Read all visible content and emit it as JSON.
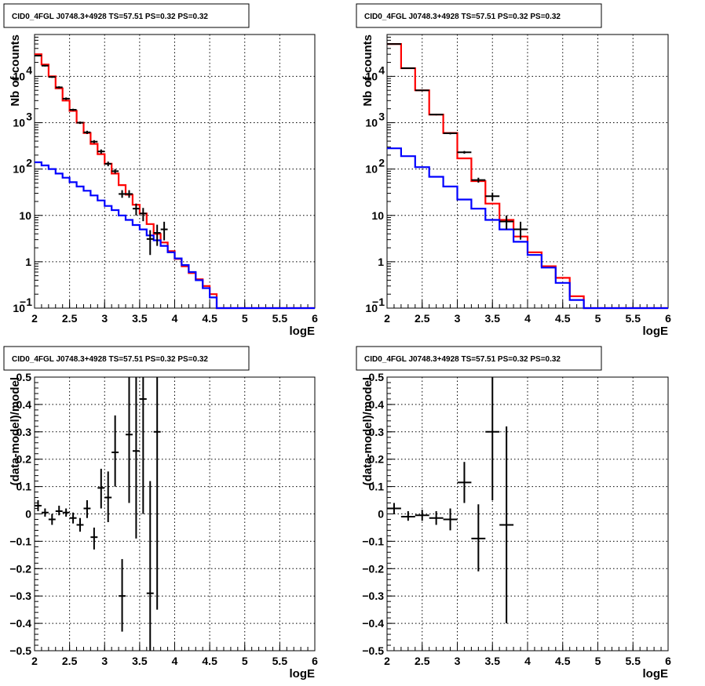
{
  "chart_data": [
    {
      "type": "step",
      "title": "CID0_4FGL J0748.3+4928 TS=57.51 PS=0.32 PS=0.32",
      "xlabel": "logE",
      "ylabel": "Nb of counts",
      "xlim": [
        2,
        6
      ],
      "ylim": [
        0.1,
        80000
      ],
      "yscale": "log",
      "grid": true,
      "x_ticks": [
        "2",
        "2.5",
        "3",
        "3.5",
        "4",
        "4.5",
        "5",
        "5.5",
        "6"
      ],
      "y_ticks": [
        {
          "value": 0.1,
          "label": "10",
          "sup": "−1"
        },
        {
          "value": 1,
          "label": "1",
          "sup": ""
        },
        {
          "value": 10,
          "label": "10",
          "sup": ""
        },
        {
          "value": 100,
          "label": "10",
          "sup": "2"
        },
        {
          "value": 1000,
          "label": "10",
          "sup": "3"
        },
        {
          "value": 10000,
          "label": "10",
          "sup": "4"
        }
      ],
      "bin_edges": [
        2.0,
        2.1,
        2.2,
        2.3,
        2.4,
        2.5,
        2.6,
        2.7,
        2.8,
        2.9,
        3.0,
        3.1,
        3.2,
        3.3,
        3.4,
        3.5,
        3.6,
        3.7,
        3.8,
        3.9,
        4.0,
        4.1,
        4.2,
        4.3,
        4.4,
        4.5,
        4.6,
        4.7,
        4.8,
        4.9,
        5.0,
        5.1,
        5.2,
        5.3,
        5.4,
        5.5,
        5.6,
        5.7,
        5.8,
        5.9,
        6.0
      ],
      "series": [
        {
          "color": "#ff0000",
          "values": [
            30000,
            18000,
            10000,
            5500,
            3000,
            1800,
            1000,
            600,
            350,
            210,
            130,
            80,
            45,
            28,
            17,
            11,
            6.5,
            4.0,
            2.6,
            1.7,
            1.15,
            0.8,
            0.57,
            0.42,
            0.3,
            0.2,
            0.1,
            0.1,
            0.1,
            0.1,
            0.1,
            0.1,
            0.1,
            0.1,
            0.1,
            0.1,
            0.1,
            0.1,
            0.1,
            0.1
          ]
        },
        {
          "color": "#0000ff",
          "values": [
            140,
            120,
            100,
            80,
            65,
            52,
            42,
            34,
            27,
            21,
            16,
            13,
            10,
            8.0,
            6.2,
            5.0,
            3.7,
            2.9,
            2.2,
            1.6,
            1.18,
            0.85,
            0.6,
            0.4,
            0.27,
            0.17,
            0.1,
            0.1,
            0.1,
            0.1,
            0.1,
            0.1,
            0.1,
            0.1,
            0.1,
            0.1,
            0.1,
            0.1,
            0.1,
            0.1
          ]
        }
      ],
      "points": [
        {
          "x": 2.05,
          "y": 28000,
          "xerr": 0.05,
          "ylo": 27000,
          "yhi": 29000
        },
        {
          "x": 2.15,
          "y": 17000,
          "xerr": 0.05,
          "ylo": 16300,
          "yhi": 17700
        },
        {
          "x": 2.25,
          "y": 9700,
          "xerr": 0.05,
          "ylo": 9300,
          "yhi": 10100
        },
        {
          "x": 2.35,
          "y": 5800,
          "xerr": 0.05,
          "ylo": 5500,
          "yhi": 6100
        },
        {
          "x": 2.45,
          "y": 3300,
          "xerr": 0.05,
          "ylo": 3100,
          "yhi": 3500
        },
        {
          "x": 2.55,
          "y": 1900,
          "xerr": 0.05,
          "ylo": 1800,
          "yhi": 2000
        },
        {
          "x": 2.65,
          "y": 1000,
          "xerr": 0.05,
          "ylo": 940,
          "yhi": 1060
        },
        {
          "x": 2.75,
          "y": 620,
          "xerr": 0.05,
          "ylo": 570,
          "yhi": 670
        },
        {
          "x": 2.85,
          "y": 390,
          "xerr": 0.05,
          "ylo": 360,
          "yhi": 420
        },
        {
          "x": 2.95,
          "y": 240,
          "xerr": 0.05,
          "ylo": 215,
          "yhi": 265
        },
        {
          "x": 3.05,
          "y": 130,
          "xerr": 0.05,
          "ylo": 115,
          "yhi": 145
        },
        {
          "x": 3.15,
          "y": 90,
          "xerr": 0.05,
          "ylo": 80,
          "yhi": 100
        },
        {
          "x": 3.25,
          "y": 29,
          "xerr": 0.05,
          "ylo": 24,
          "yhi": 35
        },
        {
          "x": 3.35,
          "y": 29,
          "xerr": 0.05,
          "ylo": 24,
          "yhi": 35
        },
        {
          "x": 3.45,
          "y": 14,
          "xerr": 0.05,
          "ylo": 10,
          "yhi": 18
        },
        {
          "x": 3.55,
          "y": 11,
          "xerr": 0.05,
          "ylo": 7.5,
          "yhi": 14.5
        },
        {
          "x": 3.65,
          "y": 3.1,
          "xerr": 0.05,
          "ylo": 1.4,
          "yhi": 4.8
        },
        {
          "x": 3.75,
          "y": 4.2,
          "xerr": 0.05,
          "ylo": 2.2,
          "yhi": 6.3
        },
        {
          "x": 3.85,
          "y": 5.0,
          "xerr": 0.05,
          "ylo": 2.9,
          "yhi": 7.3
        }
      ]
    },
    {
      "type": "step",
      "title": "CID0_4FGL J0748.3+4928 TS=57.51 PS=0.32 PS=0.32",
      "xlabel": "logE",
      "ylabel": "Nb of counts",
      "xlim": [
        2,
        6
      ],
      "ylim": [
        0.1,
        80000
      ],
      "yscale": "log",
      "grid": true,
      "x_ticks": [
        "2",
        "2.5",
        "3",
        "3.5",
        "4",
        "4.5",
        "5",
        "5.5",
        "6"
      ],
      "y_ticks": [
        {
          "value": 0.1,
          "label": "10",
          "sup": "−1"
        },
        {
          "value": 1,
          "label": "1",
          "sup": ""
        },
        {
          "value": 10,
          "label": "10",
          "sup": ""
        },
        {
          "value": 100,
          "label": "10",
          "sup": "2"
        },
        {
          "value": 1000,
          "label": "10",
          "sup": "3"
        },
        {
          "value": 10000,
          "label": "10",
          "sup": "4"
        }
      ],
      "bin_edges": [
        2.0,
        2.2,
        2.4,
        2.6,
        2.8,
        3.0,
        3.2,
        3.4,
        3.6,
        3.8,
        4.0,
        4.2,
        4.4,
        4.6,
        4.8,
        5.0,
        5.2,
        5.4,
        5.6,
        5.8,
        6.0
      ],
      "series": [
        {
          "color": "#ff0000",
          "values": [
            50000,
            15000,
            5000,
            1500,
            600,
            170,
            55,
            18,
            8.0,
            3.5,
            1.6,
            0.8,
            0.45,
            0.18,
            0.1,
            0.1,
            0.1,
            0.1,
            0.1,
            0.1
          ]
        },
        {
          "color": "#0000ff",
          "values": [
            280,
            190,
            110,
            68,
            42,
            22,
            14,
            8.0,
            5.0,
            2.7,
            1.4,
            0.75,
            0.35,
            0.15,
            0.1,
            0.1,
            0.1,
            0.1,
            0.1,
            0.1
          ]
        }
      ],
      "points": [
        {
          "x": 2.1,
          "y": 50000,
          "xerr": 0.1,
          "ylo": 49000,
          "yhi": 51000
        },
        {
          "x": 2.3,
          "y": 15000,
          "xerr": 0.1,
          "ylo": 14600,
          "yhi": 15400
        },
        {
          "x": 2.5,
          "y": 5000,
          "xerr": 0.1,
          "ylo": 4850,
          "yhi": 5150
        },
        {
          "x": 2.7,
          "y": 1500,
          "xerr": 0.1,
          "ylo": 1440,
          "yhi": 1560
        },
        {
          "x": 2.9,
          "y": 590,
          "xerr": 0.1,
          "ylo": 560,
          "yhi": 620
        },
        {
          "x": 3.1,
          "y": 230,
          "xerr": 0.1,
          "ylo": 215,
          "yhi": 245
        },
        {
          "x": 3.3,
          "y": 58,
          "xerr": 0.1,
          "ylo": 51,
          "yhi": 65
        },
        {
          "x": 3.5,
          "y": 26,
          "xerr": 0.1,
          "ylo": 21,
          "yhi": 31
        },
        {
          "x": 3.7,
          "y": 7.4,
          "xerr": 0.1,
          "ylo": 5.0,
          "yhi": 10.0
        },
        {
          "x": 3.9,
          "y": 5.0,
          "xerr": 0.1,
          "ylo": 3.0,
          "yhi": 7.3
        }
      ]
    },
    {
      "type": "scatter",
      "title": "CID0_4FGL J0748.3+4928 TS=57.51 PS=0.32 PS=0.32",
      "xlabel": "logE",
      "ylabel": "(data-model)/model",
      "xlim": [
        2,
        6
      ],
      "ylim": [
        -0.5,
        0.5
      ],
      "yscale": "linear",
      "grid": true,
      "x_ticks": [
        "2",
        "2.5",
        "3",
        "3.5",
        "4",
        "4.5",
        "5",
        "5.5",
        "6"
      ],
      "y_ticks": [
        {
          "value": -0.5,
          "label": "−0.5",
          "sup": ""
        },
        {
          "value": -0.4,
          "label": "−0.4",
          "sup": ""
        },
        {
          "value": -0.3,
          "label": "−0.3",
          "sup": ""
        },
        {
          "value": -0.2,
          "label": "−0.2",
          "sup": ""
        },
        {
          "value": -0.1,
          "label": "−0.1",
          "sup": ""
        },
        {
          "value": 0,
          "label": "0",
          "sup": ""
        },
        {
          "value": 0.1,
          "label": "0.1",
          "sup": ""
        },
        {
          "value": 0.2,
          "label": "0.2",
          "sup": ""
        },
        {
          "value": 0.3,
          "label": "0.3",
          "sup": ""
        },
        {
          "value": 0.4,
          "label": "0.4",
          "sup": ""
        },
        {
          "value": 0.5,
          "label": "0.5",
          "sup": ""
        }
      ],
      "points": [
        {
          "x": 2.05,
          "y": 0.03,
          "xerr": 0.05,
          "ylo": 0.01,
          "yhi": 0.05
        },
        {
          "x": 2.15,
          "y": 0.005,
          "xerr": 0.05,
          "ylo": -0.01,
          "yhi": 0.02
        },
        {
          "x": 2.25,
          "y": -0.02,
          "xerr": 0.05,
          "ylo": -0.04,
          "yhi": 0.0
        },
        {
          "x": 2.35,
          "y": 0.01,
          "xerr": 0.05,
          "ylo": -0.005,
          "yhi": 0.03
        },
        {
          "x": 2.45,
          "y": 0.005,
          "xerr": 0.05,
          "ylo": -0.01,
          "yhi": 0.02
        },
        {
          "x": 2.55,
          "y": -0.015,
          "xerr": 0.05,
          "ylo": -0.035,
          "yhi": 0.005
        },
        {
          "x": 2.65,
          "y": -0.04,
          "xerr": 0.05,
          "ylo": -0.065,
          "yhi": -0.015
        },
        {
          "x": 2.75,
          "y": 0.02,
          "xerr": 0.05,
          "ylo": -0.015,
          "yhi": 0.05
        },
        {
          "x": 2.85,
          "y": -0.085,
          "xerr": 0.05,
          "ylo": -0.13,
          "yhi": -0.05
        },
        {
          "x": 2.95,
          "y": 0.095,
          "xerr": 0.05,
          "ylo": 0.02,
          "yhi": 0.165
        },
        {
          "x": 3.05,
          "y": 0.06,
          "xerr": 0.05,
          "ylo": -0.03,
          "yhi": 0.155
        },
        {
          "x": 3.15,
          "y": 0.225,
          "xerr": 0.05,
          "ylo": 0.1,
          "yhi": 0.36
        },
        {
          "x": 3.25,
          "y": -0.3,
          "xerr": 0.05,
          "ylo": -0.43,
          "yhi": -0.165
        },
        {
          "x": 3.35,
          "y": 0.29,
          "xerr": 0.05,
          "ylo": 0.04,
          "yhi": 0.5
        },
        {
          "x": 3.45,
          "y": 0.23,
          "xerr": 0.05,
          "ylo": -0.09,
          "yhi": 0.5
        },
        {
          "x": 3.55,
          "y": 0.42,
          "xerr": 0.05,
          "ylo": 0.0,
          "yhi": 0.5
        },
        {
          "x": 3.65,
          "y": -0.29,
          "xerr": 0.05,
          "ylo": -0.5,
          "yhi": 0.12
        },
        {
          "x": 3.75,
          "y": 0.3,
          "xerr": 0.05,
          "ylo": -0.35,
          "yhi": 0.5
        }
      ]
    },
    {
      "type": "scatter",
      "title": "CID0_4FGL J0748.3+4928 TS=57.51 PS=0.32 PS=0.32",
      "xlabel": "logE",
      "ylabel": "(data-model)/model",
      "xlim": [
        2,
        6
      ],
      "ylim": [
        -0.5,
        0.5
      ],
      "yscale": "linear",
      "grid": true,
      "x_ticks": [
        "2",
        "2.5",
        "3",
        "3.5",
        "4",
        "4.5",
        "5",
        "5.5",
        "6"
      ],
      "y_ticks": [
        {
          "value": -0.5,
          "label": "−0.5",
          "sup": ""
        },
        {
          "value": -0.4,
          "label": "−0.4",
          "sup": ""
        },
        {
          "value": -0.3,
          "label": "−0.3",
          "sup": ""
        },
        {
          "value": -0.2,
          "label": "−0.2",
          "sup": ""
        },
        {
          "value": -0.1,
          "label": "−0.1",
          "sup": ""
        },
        {
          "value": 0,
          "label": "0",
          "sup": ""
        },
        {
          "value": 0.1,
          "label": "0.1",
          "sup": ""
        },
        {
          "value": 0.2,
          "label": "0.2",
          "sup": ""
        },
        {
          "value": 0.3,
          "label": "0.3",
          "sup": ""
        },
        {
          "value": 0.4,
          "label": "0.4",
          "sup": ""
        },
        {
          "value": 0.5,
          "label": "0.5",
          "sup": ""
        }
      ],
      "points": [
        {
          "x": 2.1,
          "y": 0.02,
          "xerr": 0.1,
          "ylo": 0.0,
          "yhi": 0.04
        },
        {
          "x": 2.3,
          "y": -0.01,
          "xerr": 0.1,
          "ylo": -0.025,
          "yhi": 0.01
        },
        {
          "x": 2.5,
          "y": -0.005,
          "xerr": 0.1,
          "ylo": -0.025,
          "yhi": 0.015
        },
        {
          "x": 2.7,
          "y": -0.015,
          "xerr": 0.1,
          "ylo": -0.04,
          "yhi": 0.01
        },
        {
          "x": 2.9,
          "y": -0.02,
          "xerr": 0.1,
          "ylo": -0.06,
          "yhi": 0.02
        },
        {
          "x": 3.1,
          "y": 0.115,
          "xerr": 0.1,
          "ylo": 0.04,
          "yhi": 0.19
        },
        {
          "x": 3.3,
          "y": -0.09,
          "xerr": 0.1,
          "ylo": -0.21,
          "yhi": 0.035
        },
        {
          "x": 3.5,
          "y": 0.3,
          "xerr": 0.1,
          "ylo": 0.05,
          "yhi": 0.5
        },
        {
          "x": 3.7,
          "y": -0.04,
          "xerr": 0.1,
          "ylo": -0.4,
          "yhi": 0.32
        }
      ]
    }
  ]
}
